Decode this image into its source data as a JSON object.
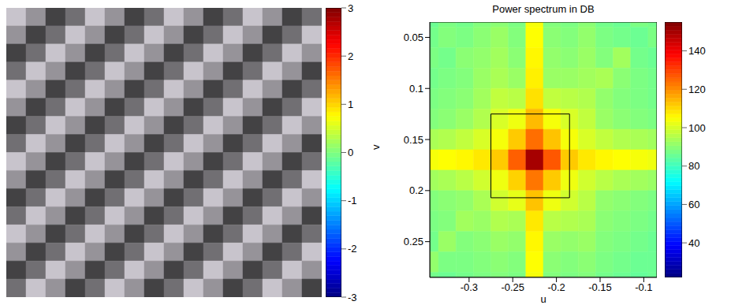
{
  "chart_data": [
    {
      "type": "image",
      "tick_labels": false,
      "cells": [
        [
          2.1,
          0.6,
          -1.9,
          -0.5,
          2.1,
          0.6,
          -1.9,
          -0.5,
          2.1,
          0.6,
          -1.9,
          -0.5,
          2.1,
          0.6,
          -1.9,
          -0.5
        ],
        [
          0.6,
          -1.9,
          -0.5,
          2.1,
          0.6,
          -1.9,
          -0.5,
          2.1,
          0.6,
          -1.9,
          -0.5,
          2.1,
          0.6,
          -1.9,
          -0.5,
          2.1
        ],
        [
          -1.9,
          -0.5,
          2.1,
          0.6,
          -1.9,
          -0.5,
          2.1,
          0.6,
          -1.9,
          -0.5,
          2.1,
          0.6,
          -1.9,
          -0.5,
          2.1,
          0.6
        ],
        [
          -0.5,
          2.1,
          0.6,
          -1.9,
          -0.5,
          2.1,
          0.6,
          -1.9,
          -0.5,
          2.1,
          0.6,
          -1.9,
          -0.5,
          2.1,
          0.6,
          -1.9
        ],
        [
          2.1,
          0.6,
          -1.9,
          -0.5,
          2.1,
          0.6,
          -1.9,
          -0.5,
          2.1,
          0.6,
          -1.9,
          -0.5,
          2.1,
          0.6,
          -1.9,
          -0.5
        ],
        [
          0.6,
          -1.9,
          -0.5,
          2.1,
          0.6,
          -1.9,
          -0.5,
          2.1,
          0.6,
          -1.9,
          -0.5,
          2.1,
          0.6,
          -1.9,
          -0.5,
          2.1
        ],
        [
          -1.9,
          -0.5,
          2.1,
          0.6,
          -1.9,
          -0.5,
          2.1,
          0.6,
          -1.9,
          -0.5,
          2.1,
          0.6,
          -1.9,
          -0.5,
          2.1,
          0.6
        ],
        [
          -0.5,
          2.1,
          0.6,
          -1.9,
          -0.5,
          2.1,
          0.6,
          -1.9,
          -0.5,
          2.1,
          0.6,
          -1.9,
          -0.5,
          2.1,
          0.6,
          -1.9
        ],
        [
          2.1,
          0.6,
          -1.9,
          -0.5,
          2.1,
          0.6,
          -1.9,
          -0.5,
          2.1,
          0.6,
          -1.9,
          -0.5,
          2.1,
          0.6,
          -1.9,
          -0.5
        ],
        [
          0.6,
          -1.9,
          -0.5,
          2.1,
          0.6,
          -1.9,
          -0.5,
          2.1,
          0.6,
          -1.9,
          -0.5,
          2.1,
          0.6,
          -1.9,
          -0.5,
          2.1
        ],
        [
          -1.9,
          -0.5,
          2.1,
          0.6,
          -1.9,
          -0.5,
          2.1,
          0.6,
          -1.9,
          -0.5,
          2.1,
          0.6,
          -1.9,
          -0.5,
          2.1,
          0.6
        ],
        [
          -0.5,
          2.1,
          0.6,
          -1.9,
          -0.5,
          2.1,
          0.6,
          -1.9,
          -0.5,
          2.1,
          0.6,
          -1.9,
          -0.5,
          2.1,
          0.6,
          -1.9
        ],
        [
          2.1,
          0.6,
          -1.9,
          -0.5,
          2.1,
          0.6,
          -1.9,
          -0.5,
          2.1,
          0.6,
          -1.9,
          -0.5,
          2.1,
          0.6,
          -1.9,
          -0.5
        ],
        [
          0.6,
          -1.9,
          -0.5,
          2.1,
          0.6,
          -1.9,
          -0.5,
          2.1,
          0.6,
          -1.9,
          -0.5,
          2.1,
          0.6,
          -1.9,
          -0.5,
          2.1
        ],
        [
          -1.9,
          -0.5,
          2.1,
          0.6,
          -1.9,
          -0.5,
          2.1,
          0.6,
          -1.9,
          -0.5,
          2.1,
          0.6,
          -1.9,
          -0.5,
          2.1,
          0.6
        ],
        [
          -0.5,
          2.1,
          0.6,
          -1.9,
          -0.5,
          2.1,
          0.6,
          -1.9,
          -0.5,
          2.1,
          0.6,
          -1.9,
          -0.5,
          2.1,
          0.6,
          -1.9
        ]
      ],
      "colorbar": {
        "range": [
          -3,
          3
        ],
        "ticks": [
          -3,
          -2,
          -1,
          0,
          1,
          2,
          3
        ]
      }
    },
    {
      "type": "heatmap",
      "title": "Power spectrum in DB",
      "x_label": "u",
      "y_label": "v",
      "xlim": [
        -0.345,
        -0.085
      ],
      "xticks": [
        -0.3,
        -0.25,
        -0.2,
        -0.15,
        -0.1
      ],
      "ylim": [
        0.035,
        0.285
      ],
      "yticks": [
        0.05,
        0.1,
        0.15,
        0.2,
        0.25
      ],
      "x_edges": [
        -0.355,
        -0.335,
        -0.315,
        -0.295,
        -0.275,
        -0.255,
        -0.235,
        -0.215,
        -0.195,
        -0.175,
        -0.155,
        -0.135,
        -0.115,
        -0.095,
        -0.075
      ],
      "y_edges": [
        0.02,
        0.04,
        0.06,
        0.08,
        0.1,
        0.12,
        0.14,
        0.16,
        0.18,
        0.2,
        0.22,
        0.24,
        0.26,
        0.28,
        0.3
      ],
      "cells": [
        [
          86,
          88,
          87,
          89,
          90,
          88,
          104,
          89,
          88,
          90,
          87,
          86,
          88,
          87
        ],
        [
          87,
          89,
          88,
          90,
          92,
          89,
          105,
          90,
          89,
          91,
          88,
          87,
          86,
          88
        ],
        [
          88,
          87,
          90,
          91,
          93,
          90,
          106,
          91,
          90,
          92,
          89,
          93,
          87,
          86
        ],
        [
          87,
          88,
          89,
          92,
          94,
          92,
          107,
          92,
          92,
          93,
          94,
          90,
          88,
          87
        ],
        [
          88,
          89,
          90,
          93,
          97,
          96,
          109,
          97,
          96,
          95,
          91,
          89,
          88,
          87
        ],
        [
          89,
          90,
          92,
          95,
          100,
          103,
          114,
          104,
          100,
          97,
          92,
          90,
          89,
          88
        ],
        [
          94,
          95,
          97,
          100,
          104,
          112,
          124,
          113,
          104,
          100,
          97,
          95,
          94,
          93
        ],
        [
          104,
          105,
          106,
          108,
          112,
          126,
          150,
          127,
          112,
          108,
          106,
          105,
          104,
          103
        ],
        [
          93,
          94,
          96,
          99,
          103,
          111,
          123,
          112,
          103,
          99,
          96,
          94,
          93,
          92
        ],
        [
          89,
          90,
          91,
          94,
          99,
          102,
          113,
          103,
          99,
          96,
          91,
          90,
          89,
          88
        ],
        [
          88,
          89,
          93,
          92,
          95,
          94,
          108,
          96,
          95,
          94,
          90,
          89,
          88,
          87
        ],
        [
          87,
          92,
          89,
          90,
          92,
          91,
          106,
          92,
          91,
          92,
          89,
          88,
          87,
          86
        ],
        [
          91,
          88,
          88,
          89,
          90,
          89,
          105,
          90,
          89,
          90,
          88,
          87,
          86,
          86
        ],
        [
          87,
          86,
          87,
          88,
          89,
          88,
          104,
          89,
          88,
          89,
          87,
          86,
          85,
          86
        ]
      ],
      "box": {
        "x": [
          -0.275,
          -0.185
        ],
        "y": [
          0.125,
          0.207
        ]
      },
      "colorbar": {
        "range": [
          22,
          155
        ],
        "ticks": [
          40,
          60,
          80,
          100,
          120,
          140
        ]
      }
    }
  ]
}
